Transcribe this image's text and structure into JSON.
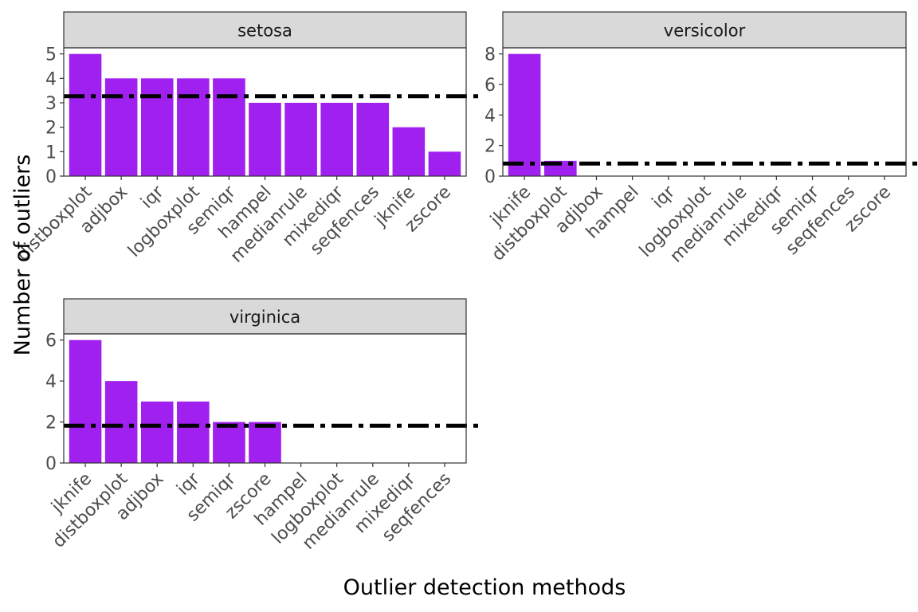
{
  "figure": {
    "xlabel": "Outlier detection methods",
    "ylabel": "Number of outliers"
  },
  "colors": {
    "bar": "#a020f0",
    "strip": "#d9d9d9",
    "refline": "#000000"
  },
  "chart_data": [
    {
      "type": "bar",
      "title": "setosa",
      "categories": [
        "distboxplot",
        "adjbox",
        "iqr",
        "logboxplot",
        "semiqr",
        "hampel",
        "medianrule",
        "mixediqr",
        "seqfences",
        "jknife",
        "zscore"
      ],
      "values": [
        5,
        4,
        4,
        4,
        4,
        3,
        3,
        3,
        3,
        2,
        1
      ],
      "yticks": [
        0,
        1,
        2,
        3,
        4,
        5
      ],
      "ylim": [
        0,
        5.25
      ],
      "reference_line": 3.27,
      "reference_style": "dash-dot",
      "grid": false
    },
    {
      "type": "bar",
      "title": "versicolor",
      "categories": [
        "jknife",
        "distboxplot",
        "adjbox",
        "hampel",
        "iqr",
        "logboxplot",
        "medianrule",
        "mixediqr",
        "semiqr",
        "seqfences",
        "zscore"
      ],
      "values": [
        8,
        1,
        0,
        0,
        0,
        0,
        0,
        0,
        0,
        0,
        0
      ],
      "yticks": [
        0,
        2,
        4,
        6,
        8
      ],
      "ylim": [
        0,
        8.4
      ],
      "reference_line": 0.82,
      "reference_style": "dash-dot",
      "grid": false
    },
    {
      "type": "bar",
      "title": "virginica",
      "categories": [
        "jknife",
        "distboxplot",
        "adjbox",
        "iqr",
        "semiqr",
        "zscore",
        "hampel",
        "logboxplot",
        "medianrule",
        "mixediqr",
        "seqfences"
      ],
      "values": [
        6,
        4,
        3,
        3,
        2,
        2,
        0,
        0,
        0,
        0,
        0
      ],
      "yticks": [
        0,
        2,
        4,
        6
      ],
      "ylim": [
        0,
        6.3
      ],
      "reference_line": 1.82,
      "reference_style": "dash-dot",
      "grid": false
    }
  ]
}
